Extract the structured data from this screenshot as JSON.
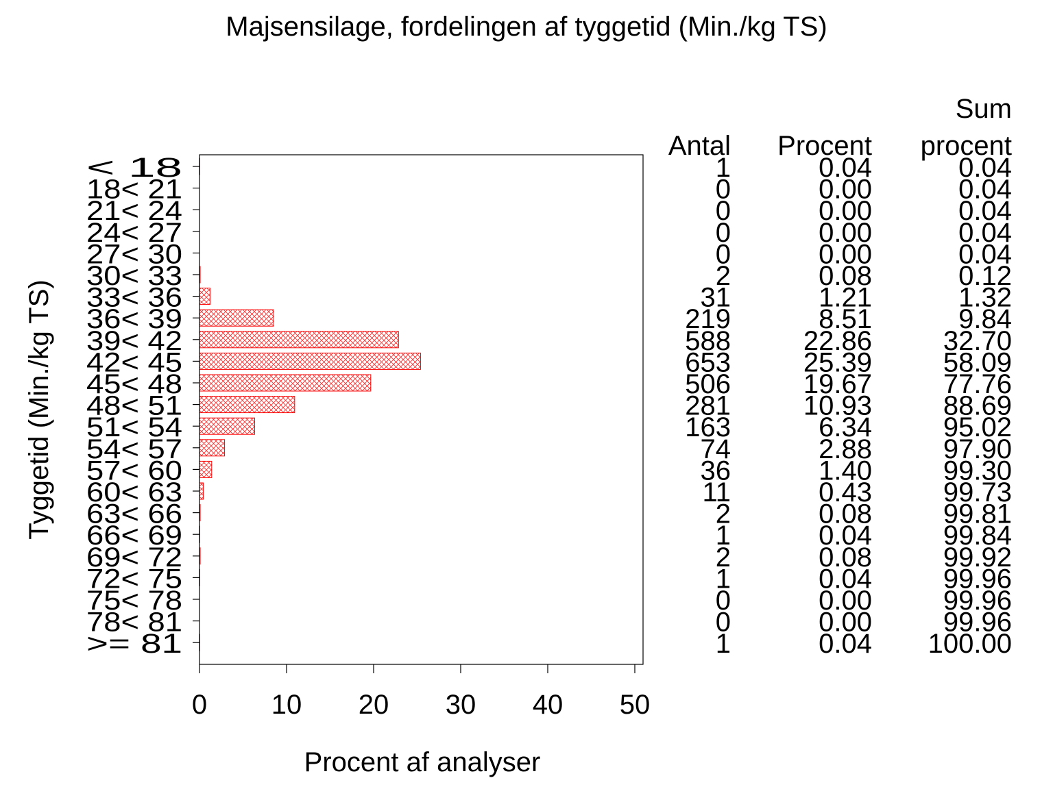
{
  "chart_data": {
    "type": "bar",
    "orientation": "horizontal",
    "title": "Majsensilage, fordelingen af tyggetid (Min./kg TS)",
    "xlabel": "Procent af analyser",
    "ylabel": "Tyggetid (Min./kg TS)",
    "xlim": [
      0,
      50
    ],
    "xticks": [
      "0",
      "10",
      "20",
      "30",
      "40",
      "50"
    ],
    "grid": false,
    "bar_color": "#ff0000",
    "bar_fill": "crosshatch",
    "categories": [
      "< 18",
      "18< 21",
      "21< 24",
      "24< 27",
      "27< 30",
      "30< 33",
      "33< 36",
      "36< 39",
      "39< 42",
      "42< 45",
      "45< 48",
      "48< 51",
      "51< 54",
      "54< 57",
      "57< 60",
      "60< 63",
      "63< 66",
      "66< 69",
      "69< 72",
      "72< 75",
      "75< 78",
      "78< 81",
      ">= 81"
    ],
    "values": [
      0.04,
      0.0,
      0.0,
      0.0,
      0.0,
      0.08,
      1.21,
      8.51,
      22.86,
      25.39,
      19.67,
      10.93,
      6.34,
      2.88,
      1.4,
      0.43,
      0.08,
      0.04,
      0.08,
      0.04,
      0.0,
      0.0,
      0.04
    ],
    "table": {
      "headers": {
        "antal": [
          "",
          "Antal"
        ],
        "procent": [
          "",
          "Procent"
        ],
        "sum_procent": [
          "Sum",
          "procent"
        ]
      },
      "antal": [
        "1",
        "0",
        "0",
        "0",
        "0",
        "2",
        "31",
        "219",
        "588",
        "653",
        "506",
        "281",
        "163",
        "74",
        "36",
        "11",
        "2",
        "1",
        "2",
        "1",
        "0",
        "0",
        "1"
      ],
      "procent": [
        "0.04",
        "0.00",
        "0.00",
        "0.00",
        "0.00",
        "0.08",
        "1.21",
        "8.51",
        "22.86",
        "25.39",
        "19.67",
        "10.93",
        "6.34",
        "2.88",
        "1.40",
        "0.43",
        "0.08",
        "0.04",
        "0.08",
        "0.04",
        "0.00",
        "0.00",
        "0.04"
      ],
      "sum_procent": [
        "0.04",
        "0.04",
        "0.04",
        "0.04",
        "0.04",
        "0.12",
        "1.32",
        "9.84",
        "32.70",
        "58.09",
        "77.76",
        "88.69",
        "95.02",
        "97.90",
        "99.30",
        "99.73",
        "99.81",
        "99.84",
        "99.92",
        "99.96",
        "99.96",
        "99.96",
        "100.00"
      ]
    }
  }
}
